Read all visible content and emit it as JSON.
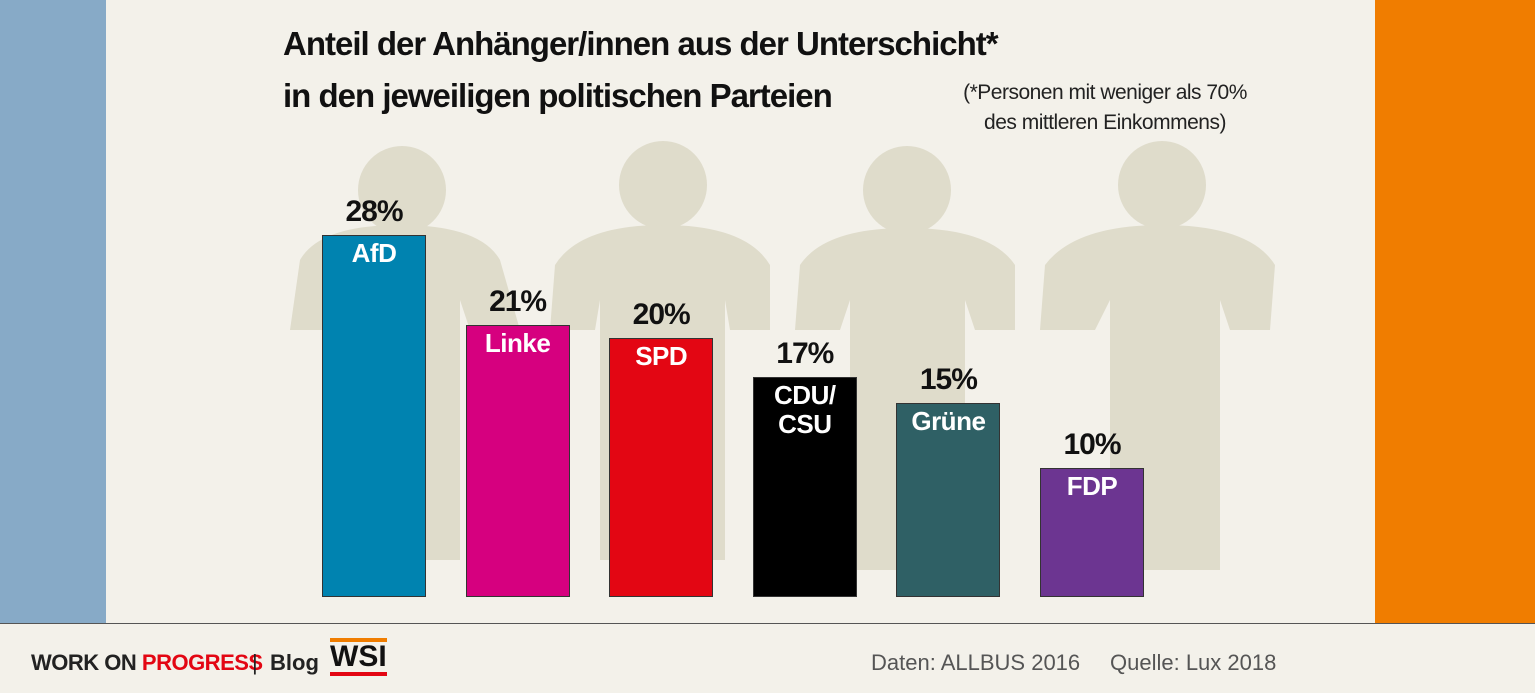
{
  "chart_data": {
    "type": "bar",
    "title": "Anteil der Anhänger/innen aus der Unterschicht*\nin den jeweiligen politischen Parteien",
    "footnote": "(*Personen mit weniger als 70%\ndes mittleren Einkommens)",
    "categories": [
      "AfD",
      "Linke",
      "SPD",
      "CDU/\nCSU",
      "Grüne",
      "FDP"
    ],
    "values": [
      28,
      21,
      20,
      17,
      15,
      10
    ],
    "value_labels": [
      "28%",
      "21%",
      "20%",
      "17%",
      "15%",
      "10%"
    ],
    "colors": [
      "#0083b0",
      "#d6007f",
      "#e30613",
      "#000000",
      "#2f6065",
      "#6c3591"
    ]
  },
  "footer": {
    "brand_1": "WORK ON",
    "brand_2": "PROGRESS",
    "separator": "|",
    "blog": "Blog",
    "logo": "WSI",
    "data_source": "Daten: ALLBUS 2016",
    "source": "Quelle: Lux 2018"
  }
}
